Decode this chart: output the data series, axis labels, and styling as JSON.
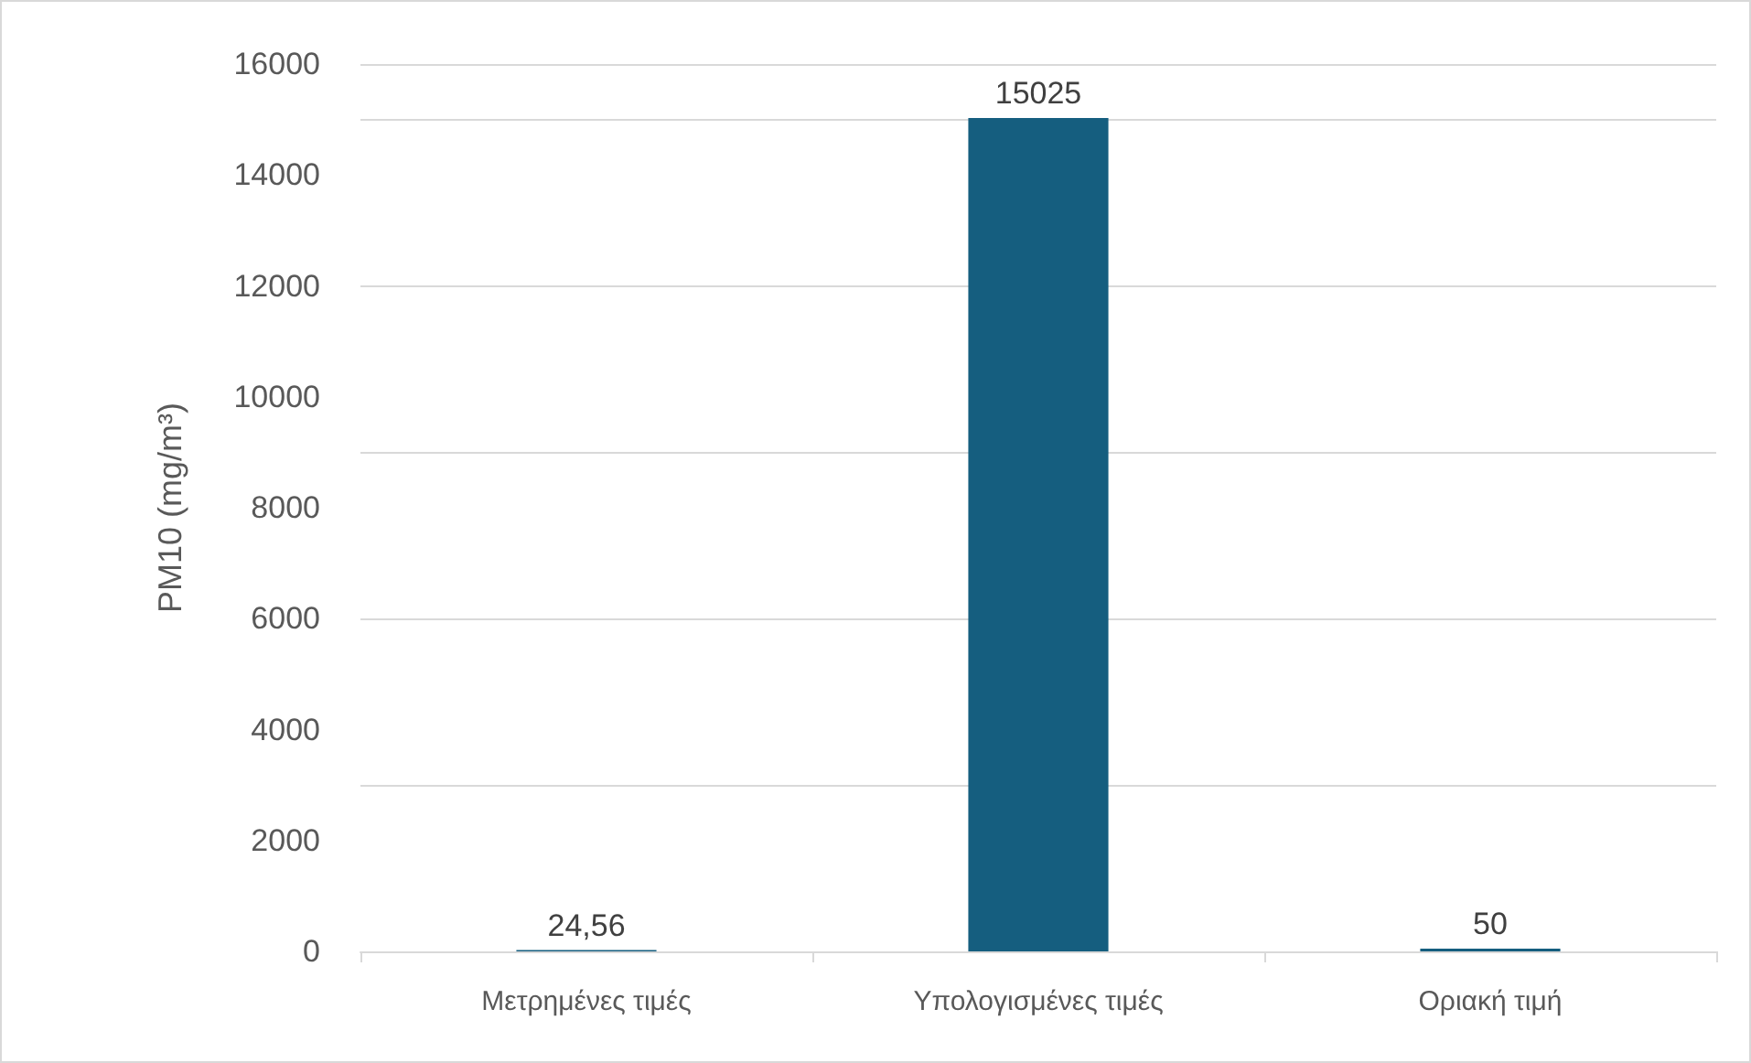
{
  "chart_data": {
    "type": "bar",
    "ylabel": "PM10 (mg/m³)",
    "categories": [
      "Μετρημένες τιμές",
      "Υπολογισμένες τιμές",
      "Οριακή τιμή"
    ],
    "values": [
      24.56,
      15025,
      50
    ],
    "color": "#155e7f",
    "value_labels": [
      "24,56",
      "15025",
      "50"
    ],
    "ylim": [
      0,
      16000
    ],
    "yticks": [
      0,
      2000,
      4000,
      6000,
      8000,
      10000,
      12000,
      14000,
      16000
    ],
    "grid": "y"
  }
}
